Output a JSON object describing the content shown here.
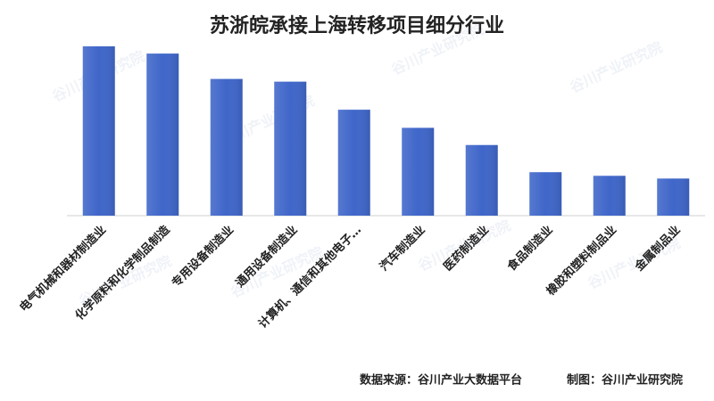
{
  "chart_data": {
    "type": "bar",
    "title": "苏浙皖承接上海转移项目细分行业",
    "categories": [
      "电气机械和器材制造业",
      "化学原料和化学制品制造",
      "专用设备制造业",
      "通用设备制造业",
      "计算机、通信和其他电子…",
      "汽车制造业",
      "医药制造业",
      "食品制造业",
      "橡胶和塑料制品业",
      "金属制品业"
    ],
    "values": [
      187,
      179,
      151,
      148,
      117,
      97,
      78,
      48,
      44,
      41
    ],
    "color": "#3f66c9",
    "source": "数据来源：谷川产业大数据平台",
    "credit": "制图：谷川产业研究院",
    "watermark": "谷川产业研究院"
  }
}
